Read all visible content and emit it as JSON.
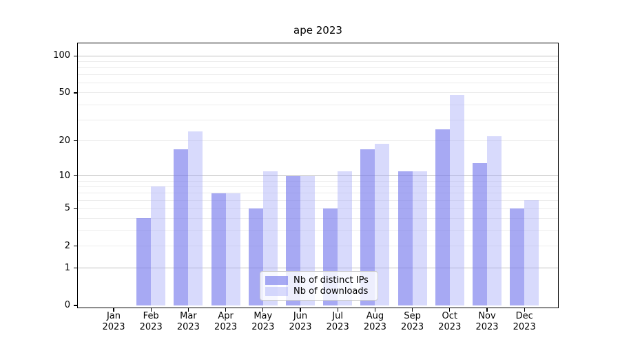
{
  "title": "ape 2023",
  "legend": {
    "items": [
      {
        "label": "Nb of distinct IPs",
        "color": "rgba(118,120,236,0.64)"
      },
      {
        "label": "Nb of downloads",
        "color": "rgba(165,170,248,0.43)"
      }
    ]
  },
  "axes": {
    "ytick_values": [
      0,
      1,
      2,
      5,
      10,
      20,
      50,
      100
    ],
    "ytick_labels": [
      "0",
      "1",
      "2",
      "5",
      "10",
      "20",
      "50",
      "100"
    ],
    "minor_grid_values": [
      2,
      3,
      4,
      5,
      6,
      7,
      8,
      9,
      20,
      30,
      40,
      50,
      60,
      70,
      80,
      90
    ],
    "major_grid_values": [
      1,
      10,
      100
    ],
    "xtick_line2": "2023"
  },
  "chart_data": {
    "type": "bar",
    "title": "ape 2023",
    "categories": [
      "Jan 2023",
      "Feb 2023",
      "Mar 2023",
      "Apr 2023",
      "May 2023",
      "Jun 2023",
      "Jul 2023",
      "Aug 2023",
      "Sep 2023",
      "Oct 2023",
      "Nov 2023",
      "Dec 2023"
    ],
    "categories_line1": [
      "Jan",
      "Feb",
      "Mar",
      "Apr",
      "May",
      "Jun",
      "Jul",
      "Aug",
      "Sep",
      "Oct",
      "Nov",
      "Dec"
    ],
    "series": [
      {
        "name": "Nb of distinct IPs",
        "color": "rgba(118,120,236,0.64)",
        "values": [
          0,
          4,
          17,
          7,
          5,
          10,
          5,
          17,
          11,
          25,
          13,
          5
        ]
      },
      {
        "name": "Nb of downloads",
        "color": "rgba(165,170,248,0.43)",
        "values": [
          0,
          8,
          24,
          7,
          11,
          10,
          11,
          19,
          11,
          48,
          22,
          6
        ]
      }
    ],
    "xlabel": "",
    "ylabel": "",
    "yscale": "symlog",
    "yticks": [
      0,
      1,
      2,
      5,
      10,
      20,
      50,
      100
    ],
    "ylim": [
      0,
      130
    ],
    "grid": true,
    "legend_position": "lower center"
  }
}
